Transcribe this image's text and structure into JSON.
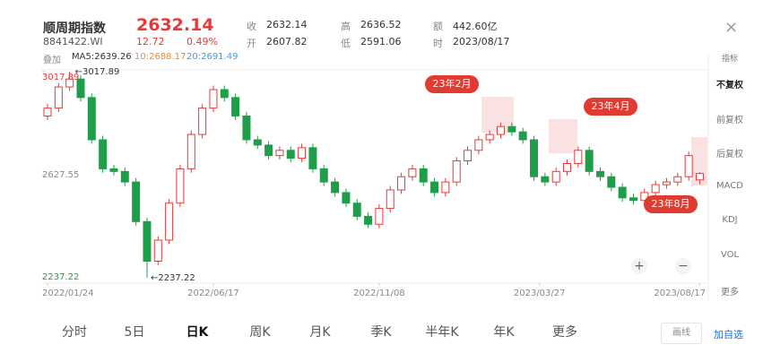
{
  "header": {
    "name": "顺周期指数",
    "code": "8841422.WI",
    "price": "2632.14",
    "change": "12.72",
    "change_pct": "0.49%",
    "fields": [
      {
        "k": "收",
        "v": "2632.14"
      },
      {
        "k": "开",
        "v": "2607.82"
      },
      {
        "k": "高",
        "v": "2636.52"
      },
      {
        "k": "低",
        "v": "2591.06"
      },
      {
        "k": "额",
        "v": "442.60亿"
      },
      {
        "k": "时",
        "v": "2023/08/17"
      }
    ],
    "overlay": "叠加",
    "ma5": "MA5:2639.26",
    "ma10": "10:2688.17",
    "ma20": "20:2691.49"
  },
  "chart_data": {
    "type": "candlestick",
    "ylim": [
      2237.22,
      3017.89
    ],
    "yticks": [
      3017.89,
      2627.55,
      2237.22
    ],
    "xticks": [
      {
        "value": 0,
        "label": "2022/01/24"
      },
      {
        "value": 15,
        "label": "2022/06/17"
      },
      {
        "value": 30,
        "label": "2022/11/08"
      },
      {
        "value": 44.5,
        "label": "2023/03/27"
      },
      {
        "value": 59,
        "label": "2023/08/17"
      }
    ],
    "up_color": "#e8393a",
    "down_color": "#1f9e4a",
    "open": [
      2850,
      2880,
      2960,
      2990,
      2920,
      2760,
      2650,
      2640,
      2600,
      2450,
      2300,
      2380,
      2520,
      2650,
      2780,
      2880,
      2950,
      2920,
      2850,
      2760,
      2740,
      2700,
      2720,
      2690,
      2730,
      2650,
      2600,
      2560,
      2520,
      2470,
      2440,
      2500,
      2570,
      2620,
      2650,
      2600,
      2560,
      2600,
      2680,
      2720,
      2760,
      2780,
      2810,
      2790,
      2760,
      2620,
      2600,
      2640,
      2670,
      2720,
      2640,
      2620,
      2580,
      2540,
      2530,
      2560,
      2590,
      2600,
      2620,
      2607.82
    ],
    "high": [
      2895,
      2975,
      3017.89,
      3005,
      2935,
      2775,
      2665,
      2655,
      2615,
      2465,
      2395,
      2535,
      2665,
      2795,
      2895,
      2965,
      2965,
      2935,
      2865,
      2775,
      2755,
      2735,
      2735,
      2745,
      2745,
      2665,
      2615,
      2575,
      2535,
      2485,
      2515,
      2585,
      2635,
      2665,
      2665,
      2615,
      2615,
      2695,
      2735,
      2775,
      2795,
      2825,
      2825,
      2805,
      2775,
      2635,
      2655,
      2685,
      2735,
      2735,
      2655,
      2635,
      2595,
      2555,
      2575,
      2605,
      2615,
      2635,
      2715,
      2636.52
    ],
    "low": [
      2835,
      2865,
      2945,
      2905,
      2745,
      2635,
      2625,
      2585,
      2435,
      2237.22,
      2285,
      2365,
      2505,
      2635,
      2765,
      2865,
      2905,
      2835,
      2745,
      2725,
      2685,
      2685,
      2675,
      2675,
      2635,
      2585,
      2545,
      2505,
      2455,
      2425,
      2425,
      2485,
      2555,
      2605,
      2585,
      2545,
      2545,
      2585,
      2665,
      2705,
      2745,
      2765,
      2775,
      2745,
      2605,
      2585,
      2585,
      2625,
      2655,
      2625,
      2605,
      2565,
      2525,
      2515,
      2515,
      2545,
      2575,
      2585,
      2605,
      2591.06
    ],
    "close": [
      2880,
      2960,
      2990,
      2920,
      2760,
      2650,
      2640,
      2600,
      2450,
      2300,
      2380,
      2520,
      2650,
      2780,
      2880,
      2950,
      2920,
      2850,
      2760,
      2740,
      2700,
      2720,
      2690,
      2730,
      2650,
      2600,
      2560,
      2520,
      2470,
      2440,
      2500,
      2570,
      2620,
      2650,
      2600,
      2560,
      2600,
      2680,
      2720,
      2760,
      2780,
      2810,
      2790,
      2760,
      2620,
      2600,
      2640,
      2670,
      2720,
      2640,
      2620,
      2580,
      2540,
      2530,
      2560,
      2590,
      2600,
      2620,
      2700,
      2632.14
    ],
    "max_label": "←3017.89",
    "min_label": "←2237.22",
    "annotations": [
      "23年2月",
      "23年4月",
      "23年8月"
    ]
  },
  "sidebar": [
    "指标",
    "不复权",
    "前复权",
    "后复权",
    "MACD",
    "KDJ",
    "VOL",
    "更多"
  ],
  "tabs": [
    "分时",
    "5日",
    "日K",
    "周K",
    "月K",
    "季K",
    "半年K",
    "年K",
    "更多"
  ],
  "buttons": {
    "draw": "画线",
    "add": "加自选"
  }
}
